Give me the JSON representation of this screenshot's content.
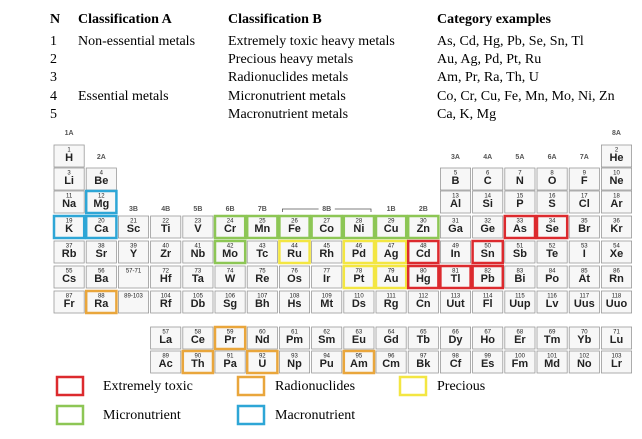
{
  "table": {
    "header": [
      "N",
      "Classification A",
      "Classification B",
      "Category examples"
    ],
    "rows": [
      [
        1,
        "Non-essential metals",
        "Extremely toxic heavy metals",
        "As, Cd, Hg, Pb, Se, Sn, Tl"
      ],
      [
        2,
        null,
        "Precious heavy metals",
        "Au, Ag, Pd, Pt, Ru"
      ],
      [
        3,
        null,
        "Radionuclides metals",
        "Am, Pr, Ra, Th, U"
      ],
      [
        4,
        "Essential metals",
        "Micronutrient metals",
        "Co, Cr, Cu, Fe, Mn, Mo, Ni, Zn"
      ],
      [
        5,
        null,
        "Macronutrient metals",
        "Ca, K, Mg"
      ]
    ]
  },
  "periodic_table": {
    "group_labels": [
      "1A",
      "2A",
      "3B",
      "4B",
      "5B",
      "6B",
      "7B",
      "8B",
      "1B",
      "2B",
      "3A",
      "4A",
      "5A",
      "6A",
      "7A",
      "8A"
    ],
    "placeholders": [
      "57-71",
      "89-103"
    ],
    "elements": [
      {
        "z": 1,
        "symbol": "H"
      },
      {
        "z": 2,
        "symbol": "He"
      },
      {
        "z": 3,
        "symbol": "Li"
      },
      {
        "z": 4,
        "symbol": "Be"
      },
      {
        "z": 5,
        "symbol": "B"
      },
      {
        "z": 6,
        "symbol": "C"
      },
      {
        "z": 7,
        "symbol": "N"
      },
      {
        "z": 8,
        "symbol": "O"
      },
      {
        "z": 9,
        "symbol": "F"
      },
      {
        "z": 10,
        "symbol": "Ne"
      },
      {
        "z": 11,
        "symbol": "Na"
      },
      {
        "z": 12,
        "symbol": "Mg"
      },
      {
        "z": 13,
        "symbol": "Al"
      },
      {
        "z": 14,
        "symbol": "Si"
      },
      {
        "z": 15,
        "symbol": "P"
      },
      {
        "z": 16,
        "symbol": "S"
      },
      {
        "z": 17,
        "symbol": "Cl"
      },
      {
        "z": 18,
        "symbol": "Ar"
      },
      {
        "z": 19,
        "symbol": "K"
      },
      {
        "z": 20,
        "symbol": "Ca"
      },
      {
        "z": 21,
        "symbol": "Sc"
      },
      {
        "z": 22,
        "symbol": "Ti"
      },
      {
        "z": 23,
        "symbol": "V"
      },
      {
        "z": 24,
        "symbol": "Cr"
      },
      {
        "z": 25,
        "symbol": "Mn"
      },
      {
        "z": 26,
        "symbol": "Fe"
      },
      {
        "z": 27,
        "symbol": "Co"
      },
      {
        "z": 28,
        "symbol": "Ni"
      },
      {
        "z": 29,
        "symbol": "Cu"
      },
      {
        "z": 30,
        "symbol": "Zn"
      },
      {
        "z": 31,
        "symbol": "Ga"
      },
      {
        "z": 32,
        "symbol": "Ge"
      },
      {
        "z": 33,
        "symbol": "As"
      },
      {
        "z": 34,
        "symbol": "Se"
      },
      {
        "z": 35,
        "symbol": "Br"
      },
      {
        "z": 36,
        "symbol": "Kr"
      },
      {
        "z": 37,
        "symbol": "Rb"
      },
      {
        "z": 38,
        "symbol": "Sr"
      },
      {
        "z": 39,
        "symbol": "Y"
      },
      {
        "z": 40,
        "symbol": "Zr"
      },
      {
        "z": 41,
        "symbol": "Nb"
      },
      {
        "z": 42,
        "symbol": "Mo"
      },
      {
        "z": 43,
        "symbol": "Tc"
      },
      {
        "z": 44,
        "symbol": "Ru"
      },
      {
        "z": 45,
        "symbol": "Rh"
      },
      {
        "z": 46,
        "symbol": "Pd"
      },
      {
        "z": 47,
        "symbol": "Ag"
      },
      {
        "z": 48,
        "symbol": "Cd"
      },
      {
        "z": 49,
        "symbol": "In"
      },
      {
        "z": 50,
        "symbol": "Sn"
      },
      {
        "z": 51,
        "symbol": "Sb"
      },
      {
        "z": 52,
        "symbol": "Te"
      },
      {
        "z": 53,
        "symbol": "I"
      },
      {
        "z": 54,
        "symbol": "Xe"
      },
      {
        "z": 55,
        "symbol": "Cs"
      },
      {
        "z": 56,
        "symbol": "Ba"
      },
      {
        "z": 57,
        "symbol": "La"
      },
      {
        "z": 58,
        "symbol": "Ce"
      },
      {
        "z": 59,
        "symbol": "Pr"
      },
      {
        "z": 60,
        "symbol": "Nd"
      },
      {
        "z": 61,
        "symbol": "Pm"
      },
      {
        "z": 62,
        "symbol": "Sm"
      },
      {
        "z": 63,
        "symbol": "Eu"
      },
      {
        "z": 64,
        "symbol": "Gd"
      },
      {
        "z": 65,
        "symbol": "Tb"
      },
      {
        "z": 66,
        "symbol": "Dy"
      },
      {
        "z": 67,
        "symbol": "Ho"
      },
      {
        "z": 68,
        "symbol": "Er"
      },
      {
        "z": 69,
        "symbol": "Tm"
      },
      {
        "z": 70,
        "symbol": "Yb"
      },
      {
        "z": 71,
        "symbol": "Lu"
      },
      {
        "z": 72,
        "symbol": "Hf"
      },
      {
        "z": 73,
        "symbol": "Ta"
      },
      {
        "z": 74,
        "symbol": "W"
      },
      {
        "z": 75,
        "symbol": "Re"
      },
      {
        "z": 76,
        "symbol": "Os"
      },
      {
        "z": 77,
        "symbol": "Ir"
      },
      {
        "z": 78,
        "symbol": "Pt"
      },
      {
        "z": 79,
        "symbol": "Au"
      },
      {
        "z": 80,
        "symbol": "Hg"
      },
      {
        "z": 81,
        "symbol": "Tl"
      },
      {
        "z": 82,
        "symbol": "Pb"
      },
      {
        "z": 83,
        "symbol": "Bi"
      },
      {
        "z": 84,
        "symbol": "Po"
      },
      {
        "z": 85,
        "symbol": "At"
      },
      {
        "z": 86,
        "symbol": "Rn"
      },
      {
        "z": 87,
        "symbol": "Fr"
      },
      {
        "z": 88,
        "symbol": "Ra"
      },
      {
        "z": 89,
        "symbol": "Ac"
      },
      {
        "z": 90,
        "symbol": "Th"
      },
      {
        "z": 91,
        "symbol": "Pa"
      },
      {
        "z": 92,
        "symbol": "U"
      },
      {
        "z": 93,
        "symbol": "Np"
      },
      {
        "z": 94,
        "symbol": "Pu"
      },
      {
        "z": 95,
        "symbol": "Am"
      },
      {
        "z": 96,
        "symbol": "Cm"
      },
      {
        "z": 97,
        "symbol": "Bk"
      },
      {
        "z": 98,
        "symbol": "Cf"
      },
      {
        "z": 99,
        "symbol": "Es"
      },
      {
        "z": 100,
        "symbol": "Fm"
      },
      {
        "z": 101,
        "symbol": "Md"
      },
      {
        "z": 102,
        "symbol": "No"
      },
      {
        "z": 103,
        "symbol": "Lr"
      },
      {
        "z": 104,
        "symbol": "Rf"
      },
      {
        "z": 105,
        "symbol": "Db"
      },
      {
        "z": 106,
        "symbol": "Sg"
      },
      {
        "z": 107,
        "symbol": "Bh"
      },
      {
        "z": 108,
        "symbol": "Hs"
      },
      {
        "z": 109,
        "symbol": "Mt"
      },
      {
        "z": 110,
        "symbol": "Ds"
      },
      {
        "z": 111,
        "symbol": "Rg"
      },
      {
        "z": 112,
        "symbol": "Cn"
      },
      {
        "z": 113,
        "symbol": "Uut"
      },
      {
        "z": 114,
        "symbol": "Fl"
      },
      {
        "z": 115,
        "symbol": "Uup"
      },
      {
        "z": 116,
        "symbol": "Lv"
      },
      {
        "z": 117,
        "symbol": "Uus"
      },
      {
        "z": 118,
        "symbol": "Uuo"
      }
    ]
  },
  "legend": [
    {
      "label": "Extremely toxic",
      "color": "#dc2a2e",
      "members": [
        "As",
        "Cd",
        "Hg",
        "Pb",
        "Se",
        "Sn",
        "Tl"
      ]
    },
    {
      "label": "Radionuclides",
      "color": "#e9a63c",
      "members": [
        "Am",
        "Pr",
        "Ra",
        "Th",
        "U"
      ]
    },
    {
      "label": "Precious",
      "color": "#f3e642",
      "members": [
        "Au",
        "Ag",
        "Pd",
        "Pt",
        "Ru"
      ]
    },
    {
      "label": "Micronutrient",
      "color": "#8dc655",
      "members": [
        "Co",
        "Cr",
        "Cu",
        "Fe",
        "Mn",
        "Mo",
        "Ni",
        "Zn"
      ]
    },
    {
      "label": "Macronutrient",
      "color": "#2ea6d6",
      "members": [
        "Ca",
        "K",
        "Mg"
      ]
    }
  ]
}
